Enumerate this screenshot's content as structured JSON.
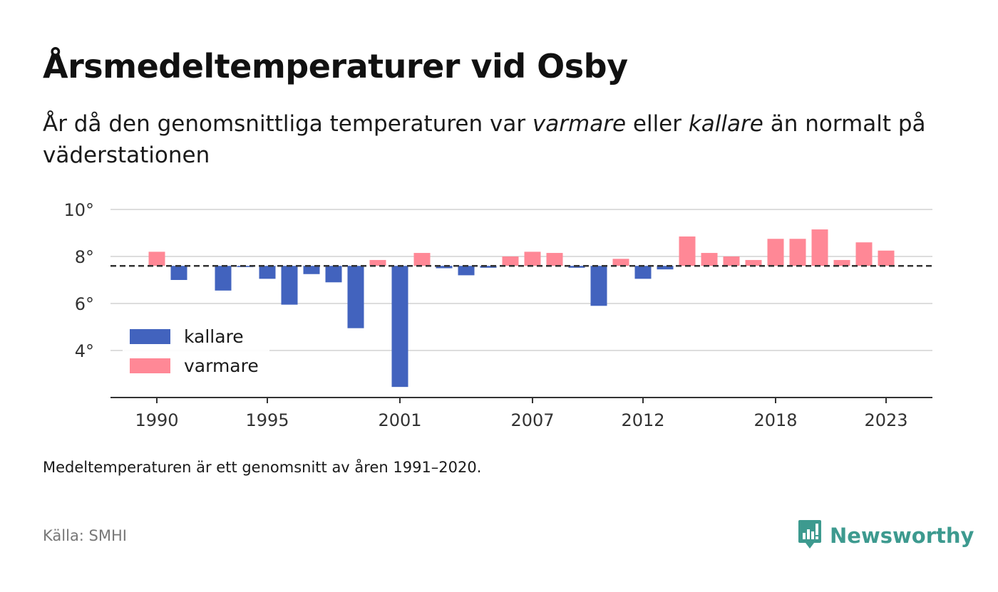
{
  "header": {
    "title": "Årsmedeltemperaturer vid Osby",
    "subtitle_pre": "År då den genomsnittliga temperaturen var ",
    "subtitle_em1": "varmare",
    "subtitle_mid": " eller ",
    "subtitle_em2": "kallare",
    "subtitle_post": " än normalt på väderstationen"
  },
  "footer": {
    "note": "Medeltemperaturen är ett genomsnitt av åren 1991–2020.",
    "source": "Källa: SMHI",
    "brand": "Newsworthy",
    "brand_icon": "newsworthy-logo-icon"
  },
  "colors": {
    "colder": "#4263be",
    "warmer": "#ff8896",
    "brand": "#3d9a8f",
    "grid": "#dddddd",
    "baseline": "#333333"
  },
  "chart_data": {
    "type": "bar",
    "baseline": 7.6,
    "ylim": [
      2.0,
      10.0
    ],
    "yticks": [
      4,
      6,
      8,
      10
    ],
    "ytick_labels": [
      "4°",
      "6°",
      "8°",
      "10°"
    ],
    "xticks": [
      1990,
      1995,
      2001,
      2007,
      2012,
      2018,
      2023
    ],
    "xtick_labels": [
      "1990",
      "1995",
      "2001",
      "2007",
      "2012",
      "2018",
      "2023"
    ],
    "legend": [
      {
        "key": "colder",
        "label": "kallare"
      },
      {
        "key": "warmer",
        "label": "varmare"
      }
    ],
    "legend_position": "bottom-left",
    "grid": true,
    "years": [
      1990,
      1991,
      1992,
      1993,
      1994,
      1995,
      1996,
      1997,
      1998,
      1999,
      2000,
      2001,
      2002,
      2003,
      2004,
      2005,
      2006,
      2007,
      2008,
      2009,
      2010,
      2011,
      2012,
      2013,
      2014,
      2015,
      2016,
      2017,
      2018,
      2019,
      2020,
      2021,
      2022,
      2023
    ],
    "values": [
      8.2,
      7.0,
      null,
      6.55,
      7.55,
      7.05,
      5.95,
      7.25,
      6.9,
      4.95,
      7.85,
      2.45,
      8.15,
      7.5,
      7.2,
      7.52,
      8.0,
      8.2,
      8.15,
      7.52,
      5.9,
      7.9,
      7.05,
      7.45,
      8.85,
      8.15,
      8.0,
      7.85,
      8.75,
      8.75,
      9.15,
      7.85,
      8.6,
      8.25
    ]
  }
}
